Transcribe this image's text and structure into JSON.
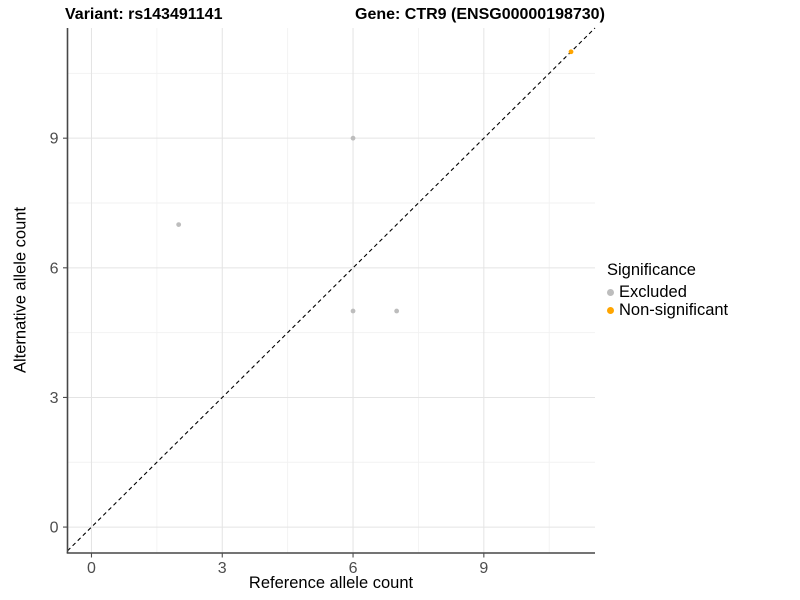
{
  "chart_data": {
    "type": "scatter",
    "title_left": "Variant: rs143491141",
    "title_right": "Gene: CTR9 (ENSG00000198730)",
    "xlabel": "Reference allele count",
    "ylabel": "Alternative allele count",
    "xlim": [
      -0.55,
      11.55
    ],
    "ylim": [
      -0.6,
      11.55
    ],
    "x_ticks": [
      0,
      3,
      6,
      9
    ],
    "y_ticks": [
      0,
      3,
      6,
      9
    ],
    "x_minor_gridlines": [
      1.5,
      4.5,
      7.5,
      10.5
    ],
    "y_minor_gridlines": [
      1.5,
      4.5,
      7.5,
      10.5
    ],
    "grid": "major and minor, light gray on white panel",
    "legend_title": "Significance",
    "legend_position": "right",
    "identity_line": {
      "equation": "y = x",
      "style": "dashed",
      "color": "#000000"
    },
    "series": [
      {
        "name": "Excluded",
        "color": "#bdbdbd",
        "points": [
          [
            2,
            7
          ],
          [
            6,
            9
          ],
          [
            6,
            5
          ],
          [
            7,
            5
          ]
        ]
      },
      {
        "name": "Non-significant",
        "color": "#ffa500",
        "points": [
          [
            11,
            11
          ]
        ]
      }
    ]
  },
  "style_colors": {
    "grid_major": "#e4e4e4",
    "grid_minor": "#f2f2f2",
    "axis_line": "#474747",
    "tick_mark": "#4d4d4d",
    "tick_label": "#4d4d4d"
  }
}
